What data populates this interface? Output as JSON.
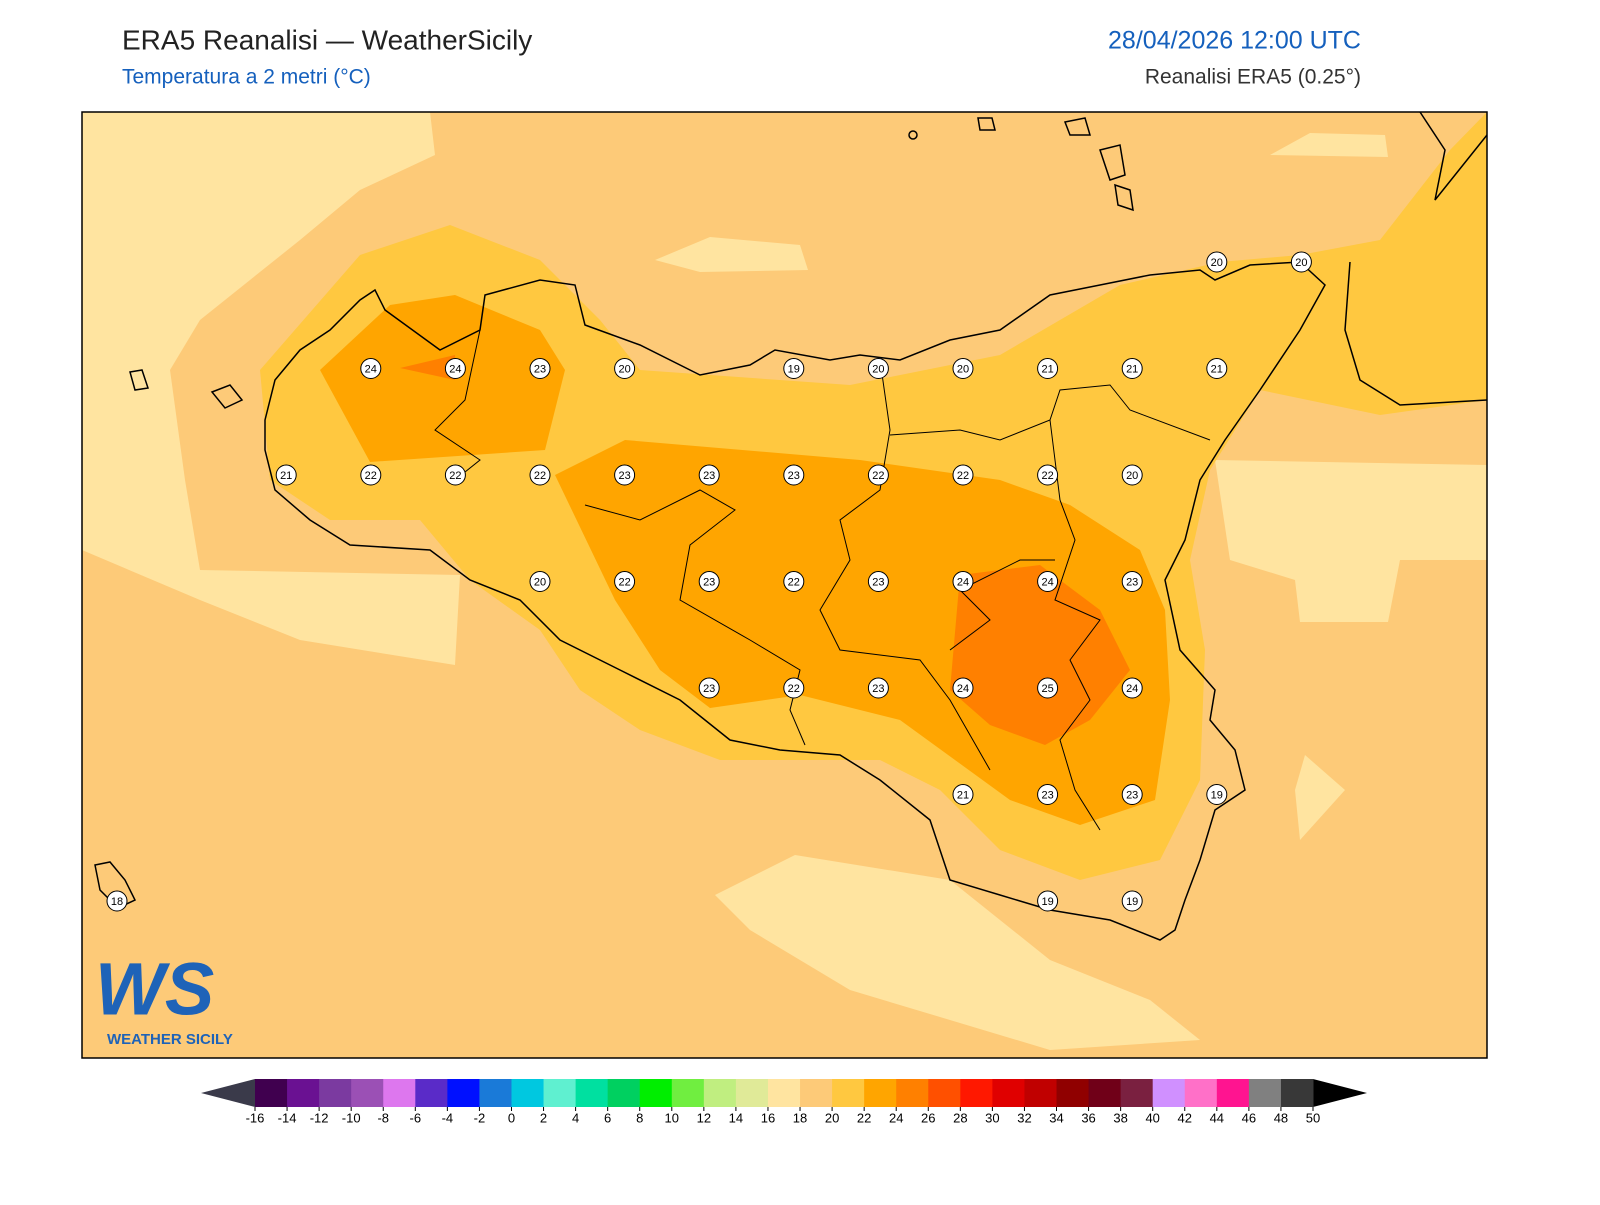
{
  "header": {
    "title": "ERA5 Reanalisi — WeatherSicily",
    "subtitle": "Temperatura a 2 metri (°C)",
    "valid_time": "28/04/2026 12:00 UTC",
    "source": "Reanalisi ERA5 (0.25°)"
  },
  "stations": {
    "rows": [
      [
        null,
        null,
        null,
        null,
        null,
        null,
        null,
        null,
        null,
        null,
        null,
        null,
        null,
        20,
        20
      ],
      [
        null,
        null,
        null,
        24,
        24,
        23,
        20,
        null,
        19,
        20,
        20,
        21,
        21,
        21,
        null
      ],
      [
        null,
        null,
        21,
        22,
        22,
        22,
        23,
        23,
        23,
        22,
        22,
        22,
        20,
        null,
        null
      ],
      [
        null,
        null,
        null,
        null,
        null,
        20,
        22,
        23,
        22,
        23,
        24,
        24,
        23,
        null,
        null
      ],
      [
        null,
        null,
        null,
        null,
        null,
        null,
        null,
        23,
        22,
        23,
        24,
        25,
        24,
        null,
        null
      ],
      [
        null,
        null,
        null,
        null,
        null,
        null,
        null,
        null,
        null,
        null,
        21,
        23,
        23,
        19,
        null
      ],
      [
        18,
        null,
        null,
        null,
        null,
        null,
        null,
        null,
        null,
        null,
        null,
        19,
        19,
        null,
        null
      ]
    ]
  },
  "colorbar": {
    "ticks": [
      -16,
      -14,
      -12,
      -10,
      -8,
      -6,
      -4,
      -2,
      0,
      2,
      4,
      6,
      8,
      10,
      12,
      14,
      16,
      18,
      20,
      22,
      24,
      26,
      28,
      30,
      32,
      34,
      36,
      38,
      40,
      42,
      44,
      46,
      48,
      50
    ],
    "colors": [
      "#40004f",
      "#6a1192",
      "#7b3aa0",
      "#9b50b5",
      "#dd77ee",
      "#5a2bc8",
      "#0010ff",
      "#1a7ad8",
      "#00c8e0",
      "#5ff0d0",
      "#00e0a0",
      "#00d060",
      "#00ee00",
      "#70ee40",
      "#c0ee80",
      "#e0ea98",
      "#ffe4a0",
      "#fdca78",
      "#ffc840",
      "#ffa500",
      "#ff8000",
      "#ff5000",
      "#ff1800",
      "#e00000",
      "#c00000",
      "#900000",
      "#700018",
      "#7a2040",
      "#d090ff",
      "#ff70c8",
      "#ff1490",
      "#808080",
      "#383838"
    ],
    "under_color": "#3a3a4a",
    "over_color": "#000000"
  },
  "logo": {
    "letters": "WS",
    "name": "WEATHER SICILY"
  }
}
